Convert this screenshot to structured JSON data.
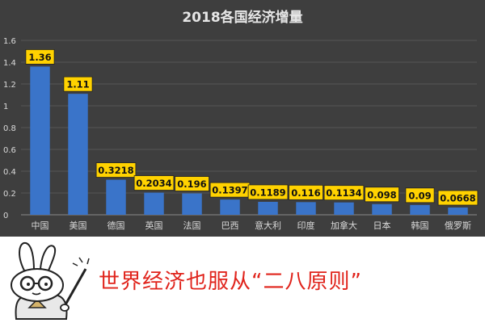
{
  "chart_data": {
    "type": "bar",
    "title": "2018各国经济增量",
    "categories": [
      "中国",
      "美国",
      "德国",
      "英国",
      "法国",
      "巴西",
      "意大利",
      "印度",
      "加拿大",
      "日本",
      "韩国",
      "俄罗斯"
    ],
    "values": [
      1.36,
      1.11,
      0.3218,
      0.2034,
      0.196,
      0.1397,
      0.1189,
      0.116,
      0.1134,
      0.098,
      0.09,
      0.0668
    ],
    "data_labels": [
      "1.36",
      "1.11",
      "0.3218",
      "0.2034",
      "0.196",
      "0.1397",
      "0.1189",
      "0.116",
      "0.1134",
      "0.098",
      "0.09",
      "0.0668"
    ],
    "y_ticks": [
      "0",
      "0.2",
      "0.4",
      "0.6",
      "0.8",
      "1",
      "1.2",
      "1.4",
      "1.6"
    ],
    "ylim": [
      0,
      1.6
    ],
    "grid": true,
    "legend": "none",
    "colors": {
      "bar": "#3a74c9",
      "label_bg": "#ffd200",
      "background": "#3e3e3e",
      "axis_text": "#d9d9d9"
    }
  },
  "caption": {
    "text": "世界经济也服从“二八原则”",
    "color": "#e0231b"
  },
  "mascot": {
    "icon": "rabbit-mascot-icon"
  }
}
